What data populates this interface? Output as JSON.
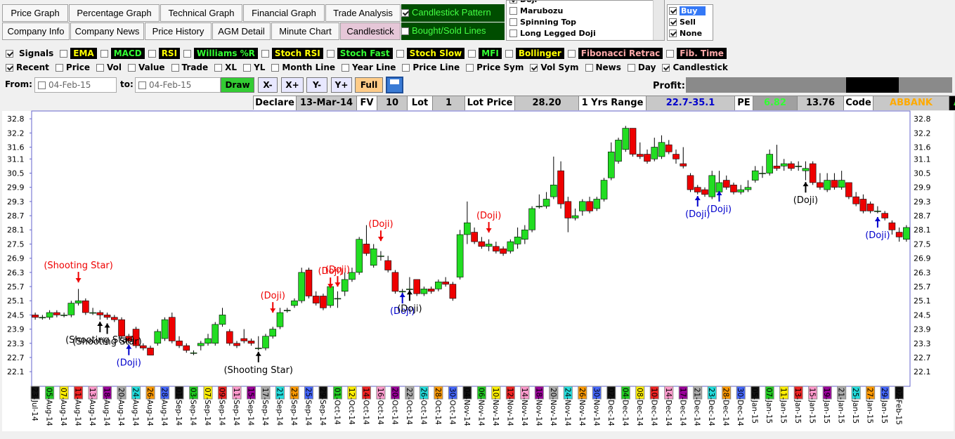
{
  "tabs": [
    [
      {
        "label": "Price Graph"
      },
      {
        "label": "Percentage Graph"
      },
      {
        "label": "Technical Graph"
      },
      {
        "label": "Financial Graph"
      },
      {
        "label": "Trade Analysis"
      }
    ],
    [
      {
        "label": "Company Info"
      },
      {
        "label": "Company News"
      },
      {
        "label": "Price History"
      },
      {
        "label": "AGM Detail"
      },
      {
        "label": "Minute Chart"
      },
      {
        "label": "Candlestick",
        "selected": true
      }
    ]
  ],
  "pattern_options": [
    {
      "label": "Candlestick Pattern",
      "checked": true
    },
    {
      "label": "Bought/Sold Lines",
      "checked": false
    }
  ],
  "pattern_list": [
    {
      "label": "Doji",
      "checked": true
    },
    {
      "label": "Marubozu",
      "checked": false
    },
    {
      "label": "Spinning Top",
      "checked": false
    },
    {
      "label": "Long Legged Doji",
      "checked": false
    }
  ],
  "signal_filter": [
    {
      "label": "Buy",
      "checked": true,
      "selected": true
    },
    {
      "label": "Sell",
      "checked": true
    },
    {
      "label": "None",
      "checked": true
    }
  ],
  "indicators": [
    {
      "label": "Signals",
      "checked": true,
      "color": "#000000",
      "background": "#f0f0f0"
    },
    {
      "label": "EMA",
      "checked": false,
      "color": "#ffff00",
      "background": "#000000"
    },
    {
      "label": "MACD",
      "checked": false,
      "color": "#33ff33",
      "background": "#000000"
    },
    {
      "label": "RSI",
      "checked": false,
      "color": "#ffff00",
      "background": "#000000"
    },
    {
      "label": "Williams %R",
      "checked": false,
      "color": "#33ff33",
      "background": "#000000"
    },
    {
      "label": "Stoch RSI",
      "checked": false,
      "color": "#ffff00",
      "background": "#000000"
    },
    {
      "label": "Stoch Fast",
      "checked": false,
      "color": "#33ff33",
      "background": "#000000"
    },
    {
      "label": "Stoch Slow",
      "checked": false,
      "color": "#ffff00",
      "background": "#000000"
    },
    {
      "label": "MFI",
      "checked": false,
      "color": "#33ff33",
      "background": "#000000"
    },
    {
      "label": "Bollinger",
      "checked": false,
      "color": "#ffff00",
      "background": "#000000"
    },
    {
      "label": "Fibonacci Retrac",
      "checked": false,
      "color": "#ffaaaa",
      "background": "#000000"
    },
    {
      "label": "Fib. Time",
      "checked": false,
      "color": "#ffaaaa",
      "background": "#000000"
    }
  ],
  "options": [
    {
      "label": "Recent",
      "checked": true
    },
    {
      "label": "Price",
      "checked": false
    },
    {
      "label": "Vol",
      "checked": false
    },
    {
      "label": "Value",
      "checked": false
    },
    {
      "label": "Trade",
      "checked": false
    },
    {
      "label": "XL",
      "checked": false
    },
    {
      "label": "YL",
      "checked": false
    },
    {
      "label": "Month Line",
      "checked": false
    },
    {
      "label": "Year Line",
      "checked": false
    },
    {
      "label": "Price Line",
      "checked": false
    },
    {
      "label": "Price Sym",
      "checked": false
    },
    {
      "label": "Vol Sym",
      "checked": true
    },
    {
      "label": "News",
      "checked": false
    },
    {
      "label": "Day",
      "checked": false
    },
    {
      "label": "Candlestick",
      "checked": true
    }
  ],
  "range": {
    "from_label": "From:",
    "from": "04-Feb-15",
    "to_label": "to:",
    "to": "04-Feb-15",
    "buttons": [
      "Draw",
      "X-",
      "X+",
      "Y-",
      "Y+",
      "Full"
    ],
    "profit_label": "Profit:"
  },
  "info": [
    {
      "text": "Declare",
      "color": "#000000",
      "background": "#ffffff"
    },
    {
      "text": "13-Mar-14",
      "color": "#000000",
      "background": "#c8c8c8"
    },
    {
      "text": "FV",
      "color": "#000000",
      "background": "#ffffff"
    },
    {
      "text": "10",
      "color": "#000000",
      "background": "#c8c8c8"
    },
    {
      "text": "Lot",
      "color": "#000000",
      "background": "#ffffff"
    },
    {
      "text": "1",
      "color": "#000000",
      "background": "#c8c8c8"
    },
    {
      "text": "Lot Price",
      "color": "#000000",
      "background": "#ffffff"
    },
    {
      "text": "28.20",
      "color": "#000000",
      "background": "#c8c8c8"
    },
    {
      "text": "1 Yrs Range",
      "color": "#000000",
      "background": "#ffffff"
    },
    {
      "text": "22.7-35.1",
      "color": "#0000cc",
      "background": "#c8c8c8"
    },
    {
      "text": "PE",
      "color": "#000000",
      "background": "#ffffff"
    },
    {
      "text": "6.82",
      "color": "#33ff33",
      "background": "#a0a0a0"
    },
    {
      "text": "13.76",
      "color": "#000000",
      "background": "#c8c8c8"
    },
    {
      "text": "Code",
      "color": "#000000",
      "background": "#ffffff"
    },
    {
      "text": "ABBANK",
      "color": "#ffaa00",
      "background": "#c8c8c8"
    },
    {
      "text": "A",
      "color": "#33ff33",
      "background": "#000000"
    }
  ],
  "chart_data": {
    "type": "candlestick",
    "up_color": "#22dd22",
    "down_color": "#ee0000",
    "ylim": [
      21.48,
      33.13
    ],
    "yticks": [
      32.8,
      32.2,
      31.6,
      31.1,
      30.5,
      29.9,
      29.3,
      28.7,
      28.1,
      27.5,
      26.9,
      26.3,
      25.7,
      25.1,
      24.5,
      23.9,
      23.3,
      22.7,
      22.1
    ],
    "categories": [
      "23-Jul-14",
      null,
      "05-Aug-14",
      null,
      "07-Aug-14",
      null,
      "11-Aug-14",
      null,
      "13-Aug-14",
      null,
      "18-Aug-14",
      null,
      "20-Aug-14",
      null,
      "24-Aug-14",
      null,
      "26-Aug-14",
      null,
      "28-Aug-14",
      null,
      "01-Sep-14",
      null,
      "03-Sep-14",
      null,
      "07-Sep-14",
      null,
      "09-Sep-14",
      null,
      "11-Sep-14",
      null,
      "15-Sep-14",
      null,
      "17-Sep-14",
      null,
      "21-Sep-14",
      null,
      "23-Sep-14",
      null,
      "25-Sep-14",
      null,
      "29-Sep-14",
      null,
      "01-Oct-14",
      null,
      "12-Oct-14",
      null,
      "14-Oct-14",
      null,
      "16-Oct-14",
      null,
      "20-Oct-14",
      null,
      "22-Oct-14",
      null,
      "26-Oct-14",
      null,
      "28-Oct-14",
      null,
      "30-Oct-14",
      null,
      "04-Nov-14",
      null,
      "06-Nov-14",
      null,
      "10-Nov-14",
      null,
      "12-Nov-14",
      null,
      "14-Nov-14",
      null,
      "18-Nov-14",
      null,
      "20-Nov-14",
      null,
      "24-Nov-14",
      null,
      "26-Nov-14",
      null,
      "30-Nov-14",
      null,
      "02-Dec-14",
      null,
      "04-Dec-14",
      null,
      "08-Dec-14",
      null,
      "10-Dec-14",
      null,
      "14-Dec-14",
      null,
      "17-Dec-14",
      null,
      "21-Dec-14",
      null,
      "23-Dec-14",
      null,
      "28-Dec-14",
      null,
      "30-Dec-14",
      null,
      "05-Jan-15",
      null,
      "07-Jan-15",
      null,
      "11-Jan-15",
      null,
      "13-Jan-15",
      null,
      "15-Jan-15",
      null,
      "19-Jan-15",
      null,
      "21-Jan-15",
      null,
      "25-Jan-15",
      null,
      "27-Jan-15",
      null,
      "29-Jan-15",
      null,
      "02-Feb-15",
      null
    ],
    "ohlc": [
      [
        24.5,
        24.6,
        24.3,
        24.4
      ],
      [
        24.4,
        24.5,
        24.3,
        24.4
      ],
      [
        24.4,
        24.7,
        24.3,
        24.6
      ],
      [
        24.6,
        24.7,
        24.4,
        24.5
      ],
      [
        24.5,
        24.6,
        24.4,
        24.5
      ],
      [
        24.5,
        25.1,
        24.4,
        25.0
      ],
      [
        25.0,
        25.6,
        24.9,
        25.1
      ],
      [
        25.1,
        25.2,
        24.5,
        24.6
      ],
      [
        24.6,
        24.8,
        24.5,
        24.6
      ],
      [
        24.6,
        24.7,
        24.3,
        24.5
      ],
      [
        24.5,
        24.6,
        24.3,
        24.4
      ],
      [
        24.4,
        24.5,
        24.2,
        24.3
      ],
      [
        24.3,
        24.4,
        23.5,
        23.6
      ],
      [
        23.6,
        23.7,
        23.3,
        23.4
      ],
      [
        23.9,
        24.0,
        23.1,
        23.2
      ],
      [
        23.2,
        23.3,
        23.0,
        23.1
      ],
      [
        23.1,
        23.2,
        22.8,
        22.8
      ],
      [
        23.3,
        23.9,
        23.2,
        23.8
      ],
      [
        23.5,
        24.4,
        23.4,
        24.3
      ],
      [
        24.4,
        24.6,
        23.3,
        23.4
      ],
      [
        23.4,
        23.6,
        23.1,
        23.2
      ],
      [
        23.2,
        23.3,
        22.9,
        23.0
      ],
      [
        22.9,
        23.0,
        22.8,
        22.9
      ],
      [
        23.2,
        23.4,
        23.0,
        23.3
      ],
      [
        23.3,
        23.7,
        23.2,
        23.5
      ],
      [
        23.3,
        24.2,
        23.2,
        24.1
      ],
      [
        24.1,
        24.8,
        24.0,
        24.5
      ],
      [
        23.8,
        23.9,
        23.2,
        23.3
      ],
      [
        23.3,
        23.4,
        23.1,
        23.2
      ],
      [
        23.5,
        23.9,
        23.3,
        23.4
      ],
      [
        23.4,
        23.5,
        23.2,
        23.3
      ],
      [
        23.1,
        23.6,
        23.0,
        23.1
      ],
      [
        23.1,
        23.7,
        23.0,
        23.6
      ],
      [
        23.6,
        24.0,
        23.5,
        23.9
      ],
      [
        24.0,
        24.8,
        23.9,
        24.6
      ],
      [
        24.7,
        24.8,
        24.6,
        24.7
      ],
      [
        24.9,
        25.2,
        24.8,
        25.1
      ],
      [
        25.1,
        26.5,
        25.0,
        26.3
      ],
      [
        26.4,
        26.5,
        25.2,
        25.3
      ],
      [
        25.3,
        25.5,
        24.9,
        25.0
      ],
      [
        25.3,
        25.4,
        24.7,
        24.8
      ],
      [
        24.9,
        26.0,
        24.8,
        25.7
      ],
      [
        25.2,
        25.5,
        24.8,
        25.2
      ],
      [
        25.5,
        26.3,
        25.3,
        26.0
      ],
      [
        26.0,
        26.5,
        25.9,
        26.3
      ],
      [
        26.3,
        27.8,
        26.2,
        27.7
      ],
      [
        27.5,
        28.3,
        27.0,
        27.1
      ],
      [
        26.6,
        27.5,
        26.5,
        27.3
      ],
      [
        27.0,
        27.2,
        26.8,
        27.0
      ],
      [
        26.8,
        27.0,
        26.3,
        26.4
      ],
      [
        26.3,
        26.4,
        25.4,
        25.5
      ],
      [
        25.5,
        25.6,
        25.4,
        25.5
      ],
      [
        25.6,
        26.1,
        25.2,
        25.6
      ],
      [
        26.0,
        26.0,
        25.3,
        25.4
      ],
      [
        25.4,
        25.7,
        25.3,
        25.6
      ],
      [
        25.6,
        25.7,
        25.4,
        25.5
      ],
      [
        25.6,
        26.0,
        25.5,
        25.9
      ],
      [
        25.9,
        26.1,
        25.7,
        25.8
      ],
      [
        25.8,
        25.9,
        25.1,
        25.2
      ],
      [
        26.1,
        28.1,
        26.0,
        27.9
      ],
      [
        27.9,
        29.3,
        27.5,
        28.4
      ],
      [
        28.0,
        28.2,
        27.5,
        27.6
      ],
      [
        27.6,
        27.8,
        27.3,
        27.4
      ],
      [
        27.4,
        27.7,
        27.2,
        27.5
      ],
      [
        27.4,
        27.6,
        27.1,
        27.2
      ],
      [
        27.3,
        27.4,
        27.0,
        27.1
      ],
      [
        27.2,
        27.7,
        27.1,
        27.6
      ],
      [
        27.5,
        28.2,
        27.3,
        27.8
      ],
      [
        27.7,
        28.3,
        27.5,
        28.1
      ],
      [
        28.1,
        29.1,
        28.0,
        29.0
      ],
      [
        29.1,
        29.6,
        29.0,
        29.1
      ],
      [
        29.1,
        29.7,
        29.0,
        29.4
      ],
      [
        29.5,
        31.2,
        29.4,
        30.0
      ],
      [
        30.6,
        31.0,
        29.0,
        29.2
      ],
      [
        29.3,
        29.5,
        28.0,
        28.6
      ],
      [
        28.6,
        29.0,
        28.5,
        28.7
      ],
      [
        28.9,
        29.4,
        28.7,
        29.3
      ],
      [
        29.3,
        29.5,
        28.8,
        28.9
      ],
      [
        29.0,
        29.5,
        28.9,
        29.4
      ],
      [
        29.4,
        30.3,
        29.3,
        30.2
      ],
      [
        30.3,
        31.8,
        30.2,
        31.4
      ],
      [
        31.0,
        32.0,
        30.9,
        31.9
      ],
      [
        31.5,
        32.5,
        31.4,
        32.4
      ],
      [
        32.4,
        32.4,
        31.2,
        31.3
      ],
      [
        31.3,
        31.8,
        31.1,
        31.2
      ],
      [
        31.3,
        31.5,
        30.9,
        31.0
      ],
      [
        31.1,
        32.0,
        31.0,
        31.6
      ],
      [
        31.2,
        32.1,
        31.1,
        31.8
      ],
      [
        31.7,
        31.9,
        31.3,
        31.4
      ],
      [
        31.3,
        31.5,
        30.9,
        31.1
      ],
      [
        30.9,
        31.6,
        30.7,
        30.8
      ],
      [
        30.4,
        30.5,
        29.7,
        29.8
      ],
      [
        29.9,
        30.0,
        29.6,
        29.7
      ],
      [
        29.8,
        29.9,
        29.5,
        29.6
      ],
      [
        29.5,
        30.6,
        29.4,
        30.4
      ],
      [
        29.7,
        30.6,
        29.6,
        30.1
      ],
      [
        30.2,
        30.4,
        29.8,
        29.9
      ],
      [
        30.0,
        30.1,
        29.6,
        29.7
      ],
      [
        29.7,
        30.0,
        29.6,
        29.8
      ],
      [
        29.8,
        30.2,
        29.7,
        29.9
      ],
      [
        30.2,
        30.8,
        30.1,
        30.6
      ],
      [
        30.5,
        30.8,
        30.3,
        30.5
      ],
      [
        30.5,
        31.5,
        30.4,
        31.3
      ],
      [
        30.8,
        31.7,
        30.6,
        30.7
      ],
      [
        30.8,
        31.1,
        30.6,
        30.9
      ],
      [
        30.9,
        31.0,
        30.6,
        30.7
      ],
      [
        30.8,
        31.0,
        30.6,
        30.8
      ],
      [
        30.6,
        31.0,
        30.2,
        30.7
      ],
      [
        30.9,
        31.0,
        30.0,
        30.1
      ],
      [
        30.1,
        30.5,
        29.8,
        29.9
      ],
      [
        29.8,
        30.5,
        29.7,
        30.2
      ],
      [
        30.2,
        30.5,
        29.8,
        29.9
      ],
      [
        29.9,
        30.6,
        29.8,
        30.2
      ],
      [
        30.1,
        30.1,
        29.4,
        29.5
      ],
      [
        29.5,
        29.7,
        29.1,
        29.2
      ],
      [
        29.4,
        29.6,
        28.8,
        28.9
      ],
      [
        29.2,
        29.3,
        28.8,
        28.9
      ],
      [
        28.9,
        29.1,
        28.8,
        28.9
      ],
      [
        28.8,
        28.9,
        28.5,
        28.6
      ],
      [
        28.4,
        28.5,
        27.9,
        28.1
      ],
      [
        28.0,
        28.2,
        27.6,
        27.8
      ],
      [
        27.7,
        28.3,
        27.6,
        28.2
      ]
    ],
    "annotations": [
      {
        "text": "(Shooting Star)",
        "color": "#ee0000",
        "candle": 6,
        "y": 26.62,
        "arrow": "down"
      },
      {
        "text": "(Shooting Star)",
        "color": "#000000",
        "candle": 9,
        "y": 23.47,
        "arrow": "up"
      },
      {
        "text": "(Shooting Star)",
        "color": "#000000",
        "candle": 10,
        "y": 23.4,
        "arrow": "up"
      },
      {
        "text": "(Doji)",
        "color": "#0000cc",
        "candle": 13,
        "y": 22.5,
        "arrow": "up"
      },
      {
        "text": "(Shooting Star)",
        "color": "#000000",
        "candle": 31,
        "y": 22.2,
        "arrow": "up"
      },
      {
        "text": "(Doji)",
        "color": "#ee0000",
        "candle": 33,
        "y": 25.34,
        "arrow": "down"
      },
      {
        "text": "(Doji)",
        "color": "#ee0000",
        "candle": 41,
        "y": 26.38,
        "arrow": "down"
      },
      {
        "text": "(Doji)",
        "color": "#ee0000",
        "candle": 42,
        "y": 26.44,
        "arrow": "down"
      },
      {
        "text": "(Doji)",
        "color": "#ee0000",
        "candle": 48,
        "y": 28.37,
        "arrow": "down"
      },
      {
        "text": "(Doji)",
        "color": "#0000cc",
        "candle": 51,
        "y": 24.69,
        "arrow": "up"
      },
      {
        "text": "(Doji)",
        "color": "#000000",
        "candle": 52,
        "y": 24.8,
        "arrow": "up"
      },
      {
        "text": "(Doji)",
        "color": "#ee0000",
        "candle": 63,
        "y": 28.73,
        "arrow": "down"
      },
      {
        "text": "(Doji)",
        "color": "#0000cc",
        "candle": 92,
        "y": 28.79,
        "arrow": "up"
      },
      {
        "text": "(Doji)",
        "color": "#0000cc",
        "candle": 95,
        "y": 29.0,
        "arrow": "up"
      },
      {
        "text": "(Doji)",
        "color": "#000000",
        "candle": 107,
        "y": 29.38,
        "arrow": "up"
      },
      {
        "text": "(Doji)",
        "color": "#0000cc",
        "candle": 117,
        "y": 27.9,
        "arrow": "up"
      }
    ]
  }
}
